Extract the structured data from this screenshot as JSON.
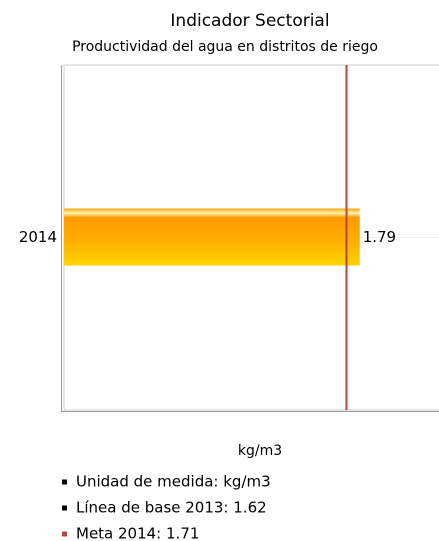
{
  "chart_data": {
    "type": "bar",
    "orientation": "horizontal",
    "title": "Indicador Sectorial",
    "subtitle": "Productividad del agua en distritos de riego",
    "categories": [
      "2014"
    ],
    "values": [
      1.79
    ],
    "value_labels": [
      "1.79"
    ],
    "color": "#ff9900",
    "xlim": [
      0,
      2.27
    ],
    "x_label": "kg/m3",
    "target_line": {
      "value": 1.71,
      "color": "#b5473a"
    },
    "notes": [
      {
        "text": "Unidad de medida: kg/m3",
        "color": "#000000"
      },
      {
        "text": "Línea de base 2013: 1.62",
        "color": "#000000"
      },
      {
        "text": "Meta 2014: 1.71",
        "color": "#b5473a"
      }
    ]
  }
}
